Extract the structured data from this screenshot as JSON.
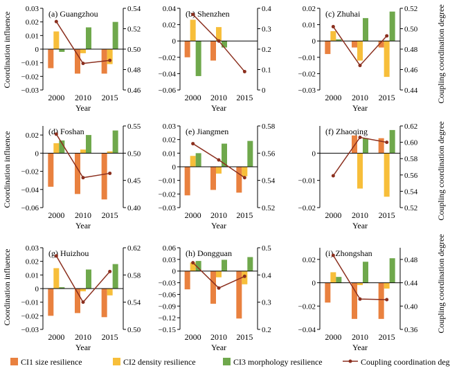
{
  "colors": {
    "ci1": "#E9813F",
    "ci2": "#F7BE3A",
    "ci3": "#6FA84C",
    "ccd": "#8B2F1E",
    "axis": "#000000"
  },
  "labels": {
    "left_ylabel": "Coordination influence",
    "right_ylabel": "Coupling coordination degree",
    "xlabel": "Year"
  },
  "legend": {
    "items": [
      {
        "key": "ci1",
        "label": "CI1 size resilience",
        "kind": "bar"
      },
      {
        "key": "ci2",
        "label": "CI2 density resilience",
        "kind": "bar"
      },
      {
        "key": "ci3",
        "label": "CI3 morphology resilience",
        "kind": "bar"
      },
      {
        "key": "ccd",
        "label": "Coupling coordination degree",
        "kind": "line"
      }
    ]
  },
  "chart_data": [
    {
      "type": "bar+line",
      "title": "(a) Guangzhou",
      "categories": [
        "2000",
        "2010",
        "2015"
      ],
      "left_ticks": [
        "0.03",
        "0.02",
        "0.01",
        "0",
        "−0.01",
        "−0.02",
        "−0.03"
      ],
      "left_tick_values": [
        0.03,
        0.02,
        0.01,
        0,
        -0.01,
        -0.02,
        -0.03
      ],
      "ylim": [
        -0.03,
        0.03
      ],
      "right_ticks": [
        "0.54",
        "0.52",
        "0.50",
        "0.48",
        "0.46"
      ],
      "right_tick_values": [
        0.54,
        0.52,
        0.5,
        0.48,
        0.46
      ],
      "ylim_right": [
        0.46,
        0.54
      ],
      "series": [
        {
          "name": "CI1 size resilience",
          "values": [
            -0.014,
            -0.018,
            -0.018
          ]
        },
        {
          "name": "CI2 density resilience",
          "values": [
            0.013,
            -0.003,
            -0.011
          ]
        },
        {
          "name": "CI3 morphology resilience",
          "values": [
            -0.002,
            0.016,
            0.02
          ]
        },
        {
          "name": "Coupling coordination degree",
          "values": [
            0.527,
            0.486,
            0.489
          ]
        }
      ]
    },
    {
      "type": "bar+line",
      "title": "(b) Shenzhen",
      "categories": [
        "2000",
        "2010",
        "2015"
      ],
      "left_ticks": [
        "0.04",
        "0.02",
        "0",
        "−0.02",
        "−0.04",
        "−0.06"
      ],
      "left_tick_values": [
        0.04,
        0.02,
        0,
        -0.02,
        -0.04,
        -0.06
      ],
      "ylim": [
        -0.06,
        0.04
      ],
      "right_ticks": [
        "0.4",
        "0.3",
        "0.2",
        "0.1",
        "0"
      ],
      "right_tick_values": [
        0.4,
        0.3,
        0.2,
        0.1,
        0
      ],
      "ylim_right": [
        0,
        0.4
      ],
      "series": [
        {
          "name": "CI1 size resilience",
          "values": [
            -0.02,
            -0.024,
            0
          ]
        },
        {
          "name": "CI2 density resilience",
          "values": [
            0.026,
            0.017,
            0
          ]
        },
        {
          "name": "CI3 morphology resilience",
          "values": [
            -0.043,
            -0.008,
            0
          ]
        },
        {
          "name": "Coupling coordination degree",
          "values": [
            0.37,
            0.24,
            0.09
          ]
        }
      ]
    },
    {
      "type": "bar+line",
      "title": "(c) Zhuhai",
      "categories": [
        "2000",
        "2010",
        "2015"
      ],
      "left_ticks": [
        "0.02",
        "0.01",
        "0",
        "−0.01",
        "−0.02",
        "−0.03"
      ],
      "left_tick_values": [
        0.02,
        0.01,
        0,
        -0.01,
        -0.02,
        -0.03
      ],
      "ylim": [
        -0.03,
        0.02
      ],
      "right_ticks": [
        "0.52",
        "0.50",
        "0.48",
        "0.46",
        "0.44"
      ],
      "right_tick_values": [
        0.52,
        0.5,
        0.48,
        0.46,
        0.44
      ],
      "ylim_right": [
        0.44,
        0.52
      ],
      "series": [
        {
          "name": "CI1 size resilience",
          "values": [
            -0.008,
            -0.004,
            -0.004
          ]
        },
        {
          "name": "CI2 density resilience",
          "values": [
            0.006,
            -0.012,
            -0.022
          ]
        },
        {
          "name": "CI3 morphology resilience",
          "values": [
            0.001,
            0.014,
            0.018
          ]
        },
        {
          "name": "Coupling coordination degree",
          "values": [
            0.502,
            0.464,
            0.493
          ]
        }
      ]
    },
    {
      "type": "bar+line",
      "title": "(d) Foshan",
      "categories": [
        "2000",
        "2010",
        "2015"
      ],
      "left_ticks": [
        "0.02",
        "0",
        "−0.02",
        "−0.04",
        "−0.06"
      ],
      "left_tick_values": [
        0.02,
        0,
        -0.02,
        -0.04,
        -0.06
      ],
      "ylim": [
        -0.06,
        0.03
      ],
      "right_ticks": [
        "0.55",
        "0.50",
        "0.45",
        "0.40"
      ],
      "right_tick_values": [
        0.55,
        0.5,
        0.45,
        0.4
      ],
      "ylim_right": [
        0.4,
        0.55
      ],
      "series": [
        {
          "name": "CI1 size resilience",
          "values": [
            -0.037,
            -0.045,
            -0.051
          ]
        },
        {
          "name": "CI2 density resilience",
          "values": [
            0.011,
            0.004,
            0.002
          ]
        },
        {
          "name": "CI3 morphology resilience",
          "values": [
            0.014,
            0.02,
            0.025
          ]
        },
        {
          "name": "Coupling coordination degree",
          "values": [
            0.535,
            0.455,
            0.463
          ]
        }
      ]
    },
    {
      "type": "bar+line",
      "title": "(e) Jiangmen",
      "categories": [
        "2000",
        "2010",
        "2015"
      ],
      "left_ticks": [
        "0.03",
        "0.02",
        "0.01",
        "0",
        "−0.01",
        "−0.02",
        "−0.03"
      ],
      "left_tick_values": [
        0.03,
        0.02,
        0.01,
        0,
        -0.01,
        -0.02,
        -0.03
      ],
      "ylim": [
        -0.03,
        0.03
      ],
      "right_ticks": [
        "0.58",
        "0.56",
        "0.54",
        "0.52"
      ],
      "right_tick_values": [
        0.58,
        0.56,
        0.54,
        0.52
      ],
      "ylim_right": [
        0.52,
        0.58
      ],
      "series": [
        {
          "name": "CI1 size resilience",
          "values": [
            -0.021,
            -0.017,
            -0.019
          ]
        },
        {
          "name": "CI2 density resilience",
          "values": [
            0.008,
            -0.005,
            -0.007
          ]
        },
        {
          "name": "CI3 morphology resilience",
          "values": [
            0.01,
            0.017,
            0.019
          ]
        },
        {
          "name": "Coupling coordination degree",
          "values": [
            0.567,
            0.555,
            0.542
          ]
        }
      ]
    },
    {
      "type": "bar+line",
      "title": "(f) Zhaoqing",
      "categories": [
        "2000",
        "2010",
        "2015"
      ],
      "left_ticks": [
        "0",
        "−0.01",
        "−0.02"
      ],
      "left_tick_values": [
        0,
        -0.01,
        -0.02
      ],
      "ylim": [
        -0.02,
        0.01
      ],
      "right_ticks": [
        "0.62",
        "0.60",
        "0.58",
        "0.56",
        "0.54",
        "0.52"
      ],
      "right_tick_values": [
        0.62,
        0.6,
        0.58,
        0.56,
        0.54,
        0.52
      ],
      "ylim_right": [
        0.52,
        0.62
      ],
      "series": [
        {
          "name": "CI1 size resilience",
          "values": [
            0,
            0.0065,
            0.0055
          ]
        },
        {
          "name": "CI2 density resilience",
          "values": [
            0,
            -0.013,
            -0.016
          ]
        },
        {
          "name": "CI3 morphology resilience",
          "values": [
            0,
            0.0055,
            0.0085
          ]
        },
        {
          "name": "Coupling coordination degree",
          "values": [
            0.559,
            0.606,
            0.6
          ]
        }
      ]
    },
    {
      "type": "bar+line",
      "title": "(g) Huizhou",
      "categories": [
        "2000",
        "2010",
        "2015"
      ],
      "left_ticks": [
        "0.03",
        "0.02",
        "0.01",
        "0",
        "−0.01",
        "−0.02",
        "−0.03"
      ],
      "left_tick_values": [
        0.03,
        0.02,
        0.01,
        0,
        -0.01,
        -0.02,
        -0.03
      ],
      "ylim": [
        -0.03,
        0.03
      ],
      "right_ticks": [
        "0.62",
        "0.58",
        "0.54",
        "0.50"
      ],
      "right_tick_values": [
        0.62,
        0.58,
        0.54,
        0.5
      ],
      "ylim_right": [
        0.5,
        0.62
      ],
      "series": [
        {
          "name": "CI1 size resilience",
          "values": [
            -0.02,
            -0.018,
            -0.021
          ]
        },
        {
          "name": "CI2 density resilience",
          "values": [
            0.015,
            -0.002,
            -0.005
          ]
        },
        {
          "name": "CI3 morphology resilience",
          "values": [
            0.001,
            0.014,
            0.018
          ]
        },
        {
          "name": "Coupling coordination degree",
          "values": [
            0.608,
            0.54,
            0.585
          ]
        }
      ]
    },
    {
      "type": "bar+line",
      "title": "(h) Dongguan",
      "categories": [
        "2000",
        "2010",
        "2015"
      ],
      "left_ticks": [
        "0.06",
        "0.03",
        "0",
        "−0.03",
        "−0.06",
        "−0.09",
        "−0.12",
        "−0.15"
      ],
      "left_tick_values": [
        0.06,
        0.03,
        0,
        -0.03,
        -0.06,
        -0.09,
        -0.12,
        -0.15
      ],
      "ylim": [
        -0.15,
        0.06
      ],
      "right_ticks": [
        "0.5",
        "0.4",
        "0.3",
        "0.2"
      ],
      "right_tick_values": [
        0.5,
        0.4,
        0.3,
        0.2
      ],
      "ylim_right": [
        0.2,
        0.5
      ],
      "series": [
        {
          "name": "CI1 size resilience",
          "values": [
            -0.047,
            -0.084,
            -0.122
          ]
        },
        {
          "name": "CI2 density resilience",
          "values": [
            0.022,
            -0.016,
            -0.034
          ]
        },
        {
          "name": "CI3 morphology resilience",
          "values": [
            0.026,
            0.029,
            0.036
          ]
        },
        {
          "name": "Coupling coordination degree",
          "values": [
            0.445,
            0.352,
            0.395
          ]
        }
      ]
    },
    {
      "type": "bar+line",
      "title": "(i) Zhongshan",
      "categories": [
        "2000",
        "2010",
        "2015"
      ],
      "left_ticks": [
        "0.02",
        "0",
        "−0.02",
        "−0.04"
      ],
      "left_tick_values": [
        0.02,
        0,
        -0.02,
        -0.04
      ],
      "ylim": [
        -0.04,
        0.03
      ],
      "right_ticks": [
        "0.48",
        "0.44",
        "0.40",
        "0.36"
      ],
      "right_tick_values": [
        0.48,
        0.44,
        0.4,
        0.36
      ],
      "ylim_right": [
        0.36,
        0.5
      ],
      "series": [
        {
          "name": "CI1 size resilience",
          "values": [
            -0.017,
            -0.031,
            -0.031
          ]
        },
        {
          "name": "CI2 density resilience",
          "values": [
            0.009,
            -0.002,
            -0.005
          ]
        },
        {
          "name": "CI3 morphology resilience",
          "values": [
            0.005,
            0.018,
            0.021
          ]
        },
        {
          "name": "Coupling coordination degree",
          "values": [
            0.487,
            0.412,
            0.411
          ]
        }
      ]
    }
  ]
}
